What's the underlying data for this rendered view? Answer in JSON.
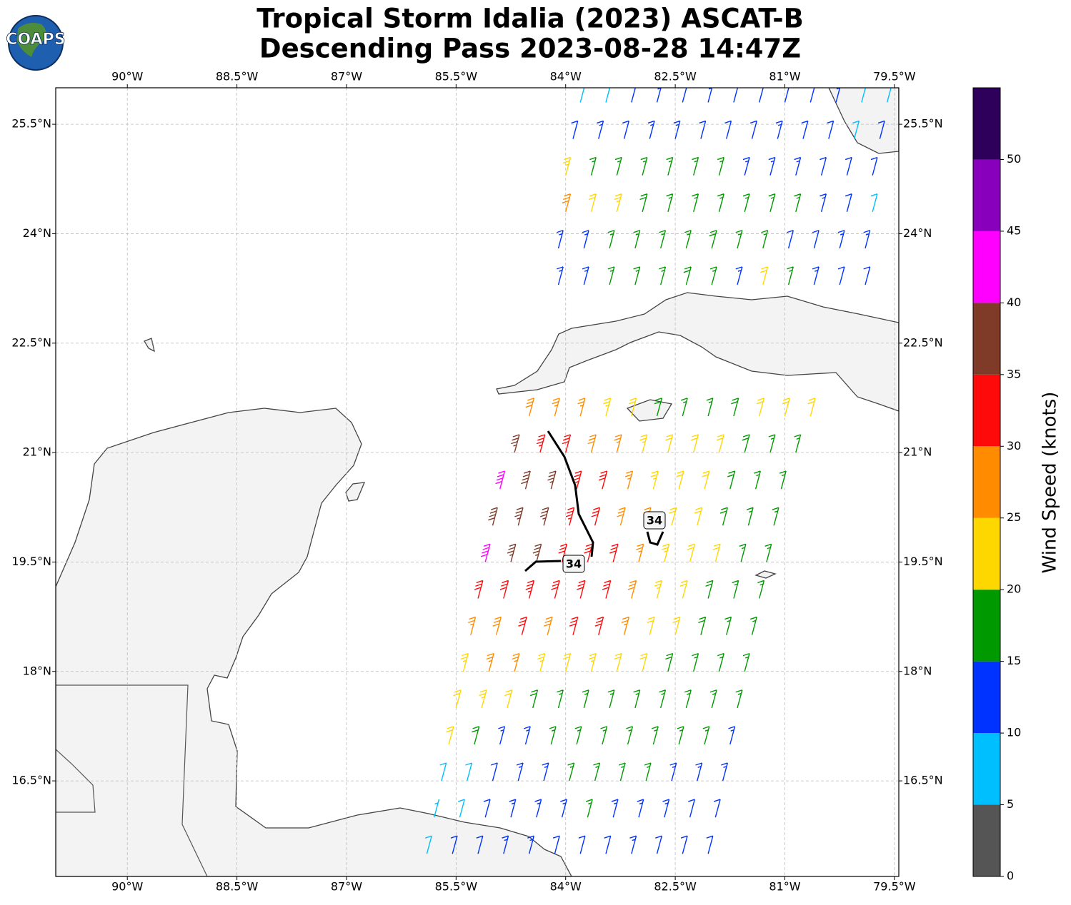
{
  "chart_data": {
    "type": "wind-barbs",
    "title_lines": [
      "Tropical Storm Idalia (2023) ASCAT-B",
      "Descending Pass 2023-08-28 14:47Z"
    ],
    "logo_text": "COAPS",
    "xlim": [
      -90.98,
      -79.44
    ],
    "ylim": [
      15.19,
      26.0
    ],
    "xticks": [
      {
        "value": -90,
        "label": "90°W"
      },
      {
        "value": -88.5,
        "label": "88.5°W"
      },
      {
        "value": -87,
        "label": "87°W"
      },
      {
        "value": -85.5,
        "label": "85.5°W"
      },
      {
        "value": -84,
        "label": "84°W"
      },
      {
        "value": -82.5,
        "label": "82.5°W"
      },
      {
        "value": -81,
        "label": "81°W"
      },
      {
        "value": -79.5,
        "label": "79.5°W"
      }
    ],
    "yticks": [
      {
        "value": 25.5,
        "label": "25.5°N"
      },
      {
        "value": 24,
        "label": "24°N"
      },
      {
        "value": 22.5,
        "label": "22.5°N"
      },
      {
        "value": 21,
        "label": "21°N"
      },
      {
        "value": 19.5,
        "label": "19.5°N"
      },
      {
        "value": 18,
        "label": "18°N"
      },
      {
        "value": 16.5,
        "label": "16.5°N"
      }
    ],
    "grid": true,
    "colorbar": {
      "label": "Wind Speed (knots)",
      "clim": [
        0,
        55
      ],
      "ticks": [
        0,
        5,
        10,
        15,
        20,
        25,
        30,
        35,
        40,
        45,
        50
      ],
      "colors": [
        "#555555",
        "#00bfff",
        "#0033ff",
        "#009900",
        "#ffd700",
        "#ff8c00",
        "#ff0a0a",
        "#7f3a28",
        "#ff00ff",
        "#8800bb",
        "#2e005c"
      ]
    },
    "contour_labels": [
      "34",
      "34"
    ],
    "wind_rows": [
      {
        "lat": 25.8,
        "lon": -83.8,
        "speeds": [
          8,
          9,
          12,
          13,
          12,
          13,
          12,
          12,
          11,
          12,
          13,
          8,
          9
        ]
      },
      {
        "lat": 25.3,
        "lon": -83.9,
        "speeds": [
          12,
          13,
          12,
          14,
          13,
          12,
          12,
          12,
          13,
          12,
          12,
          9,
          12
        ]
      },
      {
        "lat": 24.8,
        "lon": -84.0,
        "speeds": [
          23,
          17,
          15,
          16,
          17,
          17,
          16,
          14,
          13,
          13,
          12,
          12,
          12
        ]
      },
      {
        "lat": 24.3,
        "lon": -84.0,
        "speeds": [
          28,
          22,
          23,
          18,
          17,
          16,
          16,
          15,
          17,
          16,
          13,
          12,
          8
        ]
      },
      {
        "lat": 23.8,
        "lon": -84.1,
        "speeds": [
          13,
          14,
          17,
          16,
          16,
          17,
          18,
          16,
          16,
          12,
          12,
          13,
          13
        ]
      },
      {
        "lat": 23.3,
        "lon": -84.1,
        "speeds": [
          13,
          13,
          16,
          17,
          17,
          18,
          17,
          13,
          22,
          16,
          13,
          12,
          12
        ]
      },
      {
        "lat": 21.5,
        "lon": -84.5,
        "speeds": [
          28,
          27,
          26,
          24,
          22,
          18,
          17,
          16,
          18,
          20,
          22,
          21
        ]
      },
      {
        "lat": 21.0,
        "lon": -84.7,
        "speeds": [
          36,
          33,
          30,
          28,
          27,
          24,
          22,
          22,
          20,
          18,
          16,
          17
        ]
      },
      {
        "lat": 20.5,
        "lon": -84.9,
        "speeds": [
          42,
          38,
          35,
          33,
          30,
          27,
          23,
          22,
          20,
          18,
          17,
          16
        ]
      },
      {
        "lat": 20.0,
        "lon": -85.0,
        "speeds": [
          38,
          37,
          36,
          33,
          31,
          28,
          25,
          22,
          20,
          18,
          16,
          16
        ]
      },
      {
        "lat": 19.5,
        "lon": -85.1,
        "speeds": [
          42,
          37,
          35,
          32,
          32,
          30,
          27,
          23,
          22,
          20,
          17,
          16
        ]
      },
      {
        "lat": 19.0,
        "lon": -85.2,
        "speeds": [
          31,
          32,
          33,
          31,
          32,
          32,
          28,
          23,
          21,
          18,
          17,
          16
        ]
      },
      {
        "lat": 18.5,
        "lon": -85.3,
        "speeds": [
          27,
          28,
          30,
          28,
          30,
          32,
          27,
          22,
          21,
          18,
          17,
          16
        ]
      },
      {
        "lat": 18.0,
        "lon": -85.4,
        "speeds": [
          24,
          26,
          27,
          24,
          22,
          23,
          22,
          20,
          18,
          17,
          16,
          16
        ]
      },
      {
        "lat": 17.5,
        "lon": -85.5,
        "speeds": [
          22,
          24,
          22,
          18,
          17,
          17,
          16,
          17,
          16,
          16,
          16,
          15
        ]
      },
      {
        "lat": 17.0,
        "lon": -85.6,
        "speeds": [
          20,
          18,
          14,
          13,
          15,
          16,
          16,
          16,
          16,
          16,
          15,
          14
        ]
      },
      {
        "lat": 16.5,
        "lon": -85.7,
        "speeds": [
          9,
          8,
          12,
          13,
          14,
          15,
          16,
          16,
          15,
          14,
          14,
          13
        ]
      },
      {
        "lat": 16.0,
        "lon": -85.8,
        "speeds": [
          7,
          8,
          12,
          13,
          13,
          14,
          15,
          14,
          13,
          13,
          12,
          12
        ]
      },
      {
        "lat": 15.5,
        "lon": -85.9,
        "speeds": [
          8,
          11,
          12,
          13,
          13,
          12,
          12,
          12,
          13,
          12,
          12,
          11
        ]
      }
    ]
  }
}
